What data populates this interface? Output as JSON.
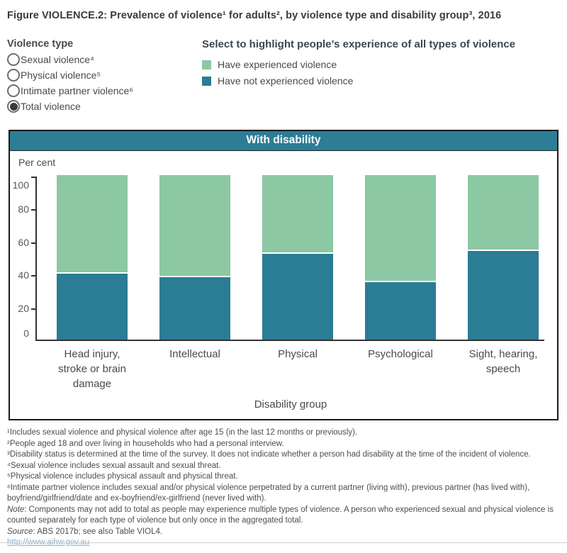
{
  "title": "Figure VIOLENCE.2: Prevalence of violence¹ for adults², by violence type and disability group³, 2016",
  "controls": {
    "violence_type": {
      "label": "Violence type",
      "options": [
        {
          "label": "Sexual violence⁴",
          "selected": false
        },
        {
          "label": "Physical violence⁵",
          "selected": false
        },
        {
          "label": "Intimate partner violence⁶",
          "selected": false
        },
        {
          "label": "Total violence",
          "selected": true
        }
      ]
    },
    "legend": {
      "heading": "Select to highlight people’s experience of all types of violence",
      "items": [
        {
          "label": "Have experienced violence",
          "color": "#8CC8A3"
        },
        {
          "label": "Have not experienced violence",
          "color": "#2B7C95"
        }
      ]
    }
  },
  "chart": {
    "pane_title": "With disability",
    "y_axis_label": "Per cent",
    "x_axis_label": "Disability group"
  },
  "chart_data": {
    "type": "bar",
    "stacked": true,
    "title": "With disability",
    "categories": [
      "Head injury,\nstroke or brain\ndamage",
      "Intellectual",
      "Physical",
      "Psychological",
      "Sight, hearing,\nspeech"
    ],
    "series": [
      {
        "name": "Have experienced violence",
        "color": "#8CC8A3",
        "values": [
          60,
          62,
          48,
          65,
          46
        ]
      },
      {
        "name": "Have not experienced violence",
        "color": "#2B7C95",
        "values": [
          40,
          38,
          52,
          35,
          54
        ]
      }
    ],
    "xlabel": "Disability group",
    "ylabel": "Per cent",
    "ylim": [
      0,
      100
    ],
    "yticks": [
      0,
      20,
      40,
      60,
      80,
      100
    ],
    "grid": false,
    "legend_position": "top"
  },
  "footnotes": [
    "¹Includes sexual violence and physical violence after age 15 (in the last 12 months or previously).",
    "²People aged 18 and over living in households who had a personal interview.",
    "³Disability status is determined at the time of the survey. It does not indicate whether a person had disability at the time of the incident of violence.",
    "⁴Sexual violence includes sexual assault and sexual threat.",
    "⁵Physical violence includes physical assault and physical threat.",
    "⁶Intimate partner violence includes sexual and/or physical violence perpetrated by a current partner (living with), previous partner (has lived with), boyfriend/girlfriend/date and ex-boyfriend/ex-girlfriend (never lived with)."
  ],
  "note": {
    "label": "Note",
    "text": ": Components may not add to total as people may experience multiple types of violence. A person who experienced sexual and physical violence is counted separately for each type of violence but only once in the aggregated total."
  },
  "source": {
    "label": "Source",
    "text": ": ABS 2017b; see also Table VIOL4."
  },
  "link": "http://www.aihw.gov.au"
}
